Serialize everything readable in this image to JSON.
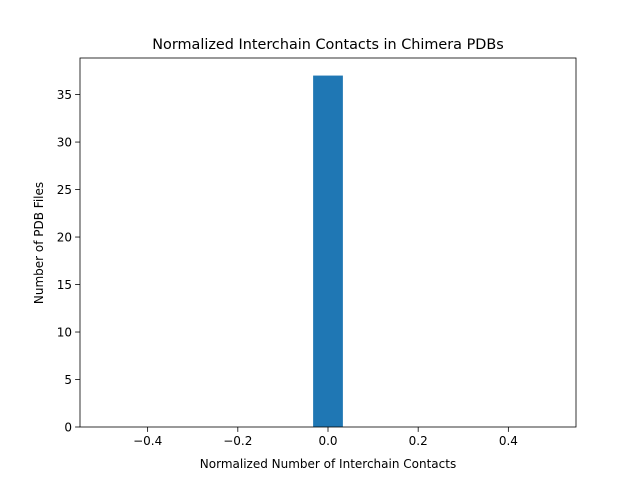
{
  "chart_data": {
    "type": "bar",
    "title": "Normalized Interchain Contacts in Chimera PDBs",
    "xlabel": "Normalized Number of Interchain Contacts",
    "ylabel": "Number of PDB Files",
    "xlim": [
      -0.55,
      0.55
    ],
    "ylim": [
      0,
      38.85
    ],
    "grid": false,
    "legend": "none",
    "bars": [
      {
        "x_start": -0.033,
        "x_end": 0.033,
        "value": 37
      }
    ],
    "xticks": [
      {
        "value": -0.4,
        "label": "−0.4"
      },
      {
        "value": -0.2,
        "label": "−0.2"
      },
      {
        "value": 0.0,
        "label": "0.0"
      },
      {
        "value": 0.2,
        "label": "0.2"
      },
      {
        "value": 0.4,
        "label": "0.4"
      }
    ],
    "yticks": [
      {
        "value": 0,
        "label": "0"
      },
      {
        "value": 5,
        "label": "5"
      },
      {
        "value": 10,
        "label": "10"
      },
      {
        "value": 15,
        "label": "15"
      },
      {
        "value": 20,
        "label": "20"
      },
      {
        "value": 25,
        "label": "25"
      },
      {
        "value": 30,
        "label": "30"
      },
      {
        "value": 35,
        "label": "35"
      }
    ],
    "colors": {
      "bar": "#1f77b4",
      "axes": "#000000"
    }
  }
}
